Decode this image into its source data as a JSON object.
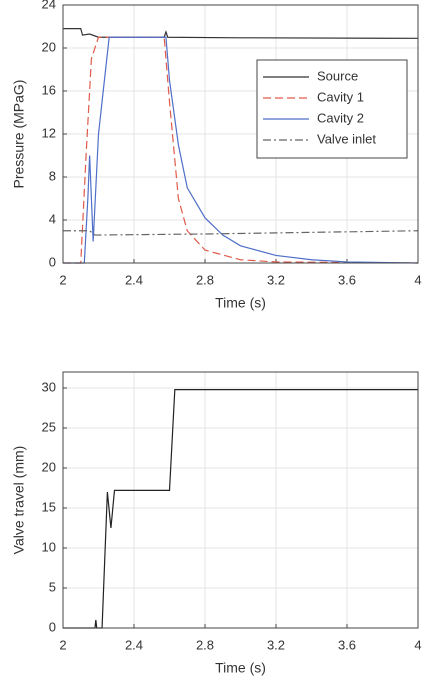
{
  "chart_data": [
    {
      "type": "line",
      "xlabel": "Time (s)",
      "ylabel": "Pressure (MPaG)",
      "xlim": [
        2,
        4
      ],
      "xticks": [
        2,
        2.4,
        2.8,
        3.2,
        3.6,
        4
      ],
      "ylim": [
        0,
        24
      ],
      "yticks": [
        0,
        4,
        8,
        12,
        16,
        20,
        24
      ],
      "grid": true,
      "legend": "northeast",
      "series": [
        {
          "name": "Source",
          "color": "#333333",
          "dash": "solid",
          "x": [
            2,
            2.1,
            2.11,
            2.15,
            2.2,
            2.57,
            2.58,
            2.59,
            3,
            4
          ],
          "values": [
            21.8,
            21.8,
            21.2,
            21.3,
            21,
            21,
            21.5,
            21,
            20.95,
            20.9
          ]
        },
        {
          "name": "Cavity 1",
          "color": "#e05a4a",
          "dash": "dashed",
          "x": [
            2,
            2.1,
            2.13,
            2.16,
            2.2,
            2.57,
            2.6,
            2.65,
            2.7,
            2.8,
            3,
            3.2,
            4
          ],
          "values": [
            0,
            0,
            10,
            19,
            21,
            21,
            15,
            6,
            3,
            1.2,
            0.3,
            0.1,
            0
          ]
        },
        {
          "name": "Cavity 2",
          "color": "#4f6fc8",
          "dash": "solid",
          "x": [
            2,
            2.12,
            2.14,
            2.15,
            2.17,
            2.2,
            2.26,
            2.58,
            2.6,
            2.65,
            2.7,
            2.8,
            2.9,
            3,
            3.2,
            3.4,
            3.6,
            4
          ],
          "values": [
            0,
            0,
            6,
            10,
            2,
            12,
            21,
            21,
            17,
            11,
            7,
            4.2,
            2.6,
            1.6,
            0.7,
            0.3,
            0.1,
            0
          ]
        },
        {
          "name": "Valve inlet",
          "color": "#666666",
          "dash": "dashdot",
          "x": [
            2,
            2.15,
            2.18,
            2.8,
            3.2,
            4
          ],
          "values": [
            3,
            3,
            2.6,
            2.7,
            2.8,
            3
          ]
        }
      ]
    },
    {
      "type": "line",
      "xlabel": "Time (s)",
      "ylabel": "Valve travel (mm)",
      "xlim": [
        2,
        4
      ],
      "xticks": [
        2,
        2.4,
        2.8,
        3.2,
        3.6,
        4
      ],
      "ylim": [
        0,
        32
      ],
      "yticks": [
        0,
        5,
        10,
        15,
        20,
        25,
        30
      ],
      "grid": true,
      "series": [
        {
          "color": "#222222",
          "dash": "solid",
          "x": [
            2,
            2.18,
            2.185,
            2.19,
            2.22,
            2.25,
            2.27,
            2.29,
            2.6,
            2.63,
            4
          ],
          "values": [
            0,
            0,
            1,
            0,
            0,
            17,
            12.5,
            17.2,
            17.2,
            29.8,
            29.8
          ]
        }
      ]
    }
  ]
}
